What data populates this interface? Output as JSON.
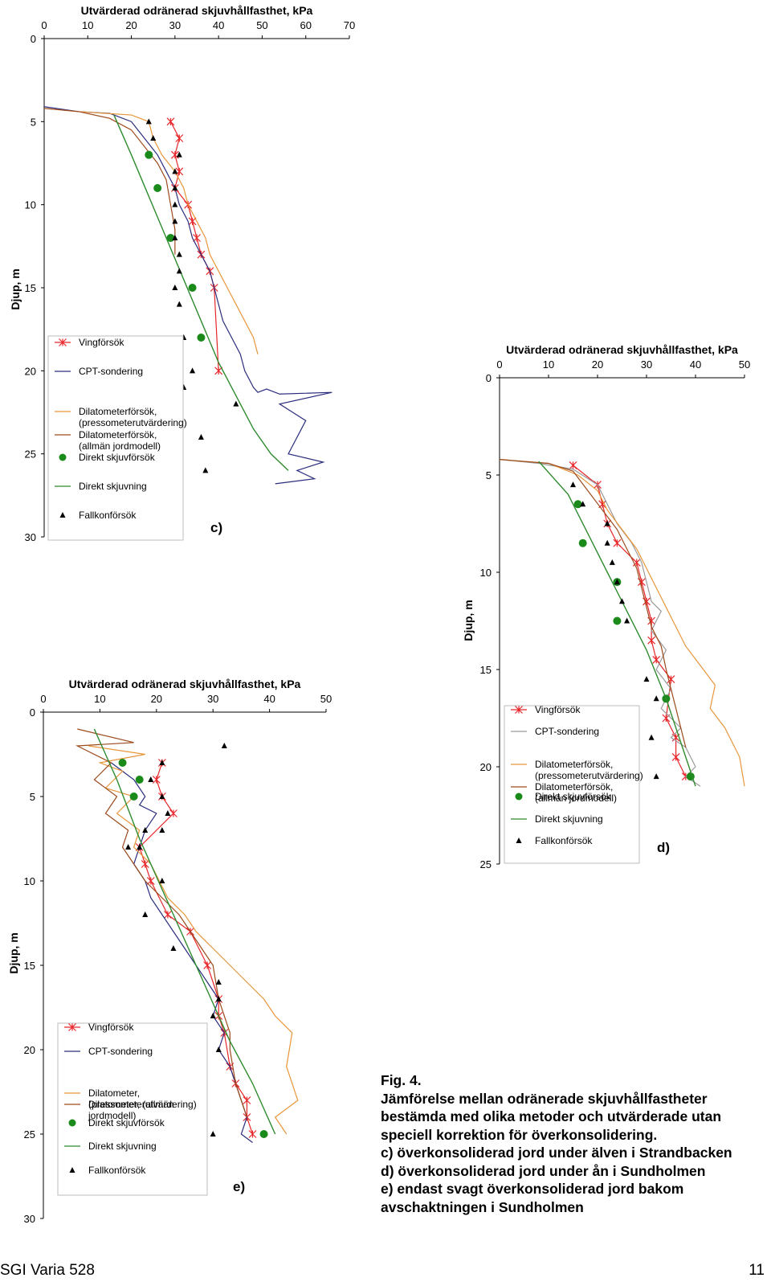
{
  "caption": {
    "lines": [
      "Fig. 4.",
      "Jämförelse mellan odränerade skjuvhållfastheter",
      "bestämda med olika metoder och utvärderade utan",
      "speciell korrektion för överkonsolidering.",
      "c) överkonsoliderad jord under älven i Strandbacken",
      "d) överkonsoliderad jord under ån i Sundholmen",
      "e) endast svagt överkonsoliderad jord bakom",
      "avschaktningen i Sundholmen"
    ]
  },
  "footer": {
    "left": "SGI Varia 528",
    "right": "11"
  },
  "colors": {
    "vingforsok": "#e8262a",
    "cpt_c": "#2b2d7e",
    "cpt_d": "#9a9a9a",
    "cpt_e": "#2b2d7e",
    "dil_press": "#e8963a",
    "dil_allman": "#9c4a1c",
    "direkt": "#1a8a1a",
    "direkt_line": "#2e8b2e",
    "fallkon": "#000000"
  },
  "chart_data": [
    {
      "id": "c",
      "type": "line",
      "panel_label": "c)",
      "title": "Utvärderad odränerad skjuvhållfasthet, kPa",
      "xlabel": "Utvärderad odränerad skjuvhållfasthet, kPa",
      "ylabel": "Djup, m",
      "xlim": [
        0,
        70
      ],
      "ylim": [
        0,
        30
      ],
      "xticks": [
        0,
        10,
        20,
        30,
        40,
        50,
        60,
        70
      ],
      "yticks": [
        0,
        5,
        10,
        15,
        20,
        25,
        30
      ],
      "legend": [
        "Vingförsök",
        "CPT-sondering",
        "Dilatometerförsök, (pressometerutvärdering)",
        "Dilatometerförsök, (allmän jordmodell)",
        "Direkt skjuvförsök",
        "Direkt skjuvning",
        "Fallkonförsök"
      ],
      "series": [
        {
          "name": "Vingförsök",
          "kind": "xline",
          "x": [
            29,
            31,
            30,
            31,
            30,
            33,
            34,
            35,
            36,
            38,
            39,
            40
          ],
          "y": [
            5,
            6,
            7,
            8,
            9,
            10,
            11,
            12,
            13,
            14,
            15,
            20
          ]
        },
        {
          "name": "CPT-sondering",
          "kind": "line",
          "x": [
            0,
            8,
            15,
            20,
            23,
            26,
            28,
            30,
            31,
            33,
            34,
            36,
            38,
            39,
            40,
            41,
            43,
            45,
            46,
            48,
            49,
            51,
            54,
            66,
            54,
            60,
            56,
            64,
            58,
            62,
            53
          ],
          "y": [
            4.1,
            4.4,
            4.5,
            5,
            6,
            7,
            8,
            9,
            10,
            11,
            12,
            13,
            14,
            15,
            16,
            17,
            18,
            19,
            20,
            21,
            21.3,
            21.1,
            21.4,
            21.3,
            22,
            23,
            25,
            25.5,
            26,
            26.5,
            26.8
          ]
        },
        {
          "name": "Dilatometerförsök, (pressometerutvärdering)",
          "kind": "line",
          "x": [
            0,
            8,
            20,
            24,
            25,
            27,
            30,
            32,
            33,
            35,
            37,
            38,
            40,
            42,
            44,
            46,
            48,
            49
          ],
          "y": [
            4.2,
            4.4,
            4.6,
            5,
            6,
            7,
            8,
            9,
            10,
            11,
            12,
            13,
            14,
            15,
            16,
            17,
            18,
            19
          ]
        },
        {
          "name": "Dilatometerförsök, (allmän jordmodell)",
          "kind": "line",
          "x": [
            0,
            8,
            15,
            20,
            23,
            26,
            28,
            29,
            30,
            30
          ],
          "y": [
            4.2,
            4.4,
            4.8,
            5.5,
            6.5,
            7.5,
            8.5,
            10,
            11.5,
            13
          ]
        },
        {
          "name": "Direkt skjuvförsök",
          "kind": "point",
          "x": [
            24,
            26,
            29,
            34,
            36
          ],
          "y": [
            7,
            9,
            12,
            15,
            18
          ]
        },
        {
          "name": "Direkt skjuvning",
          "kind": "line",
          "x": [
            16,
            20,
            24,
            28,
            32,
            36,
            40,
            44,
            48,
            52,
            56
          ],
          "y": [
            4.6,
            7,
            9.5,
            12,
            14.5,
            17,
            19.5,
            21.5,
            23.5,
            25,
            26
          ]
        },
        {
          "name": "Fallkonförsök",
          "kind": "triangle",
          "x": [
            24,
            25,
            31,
            30,
            30,
            30,
            30,
            30,
            31,
            31,
            30,
            31,
            32,
            34,
            32,
            44,
            36,
            37
          ],
          "y": [
            5,
            6,
            7,
            8,
            9,
            10,
            11,
            12,
            13,
            14,
            15,
            16,
            18,
            20,
            21,
            22,
            24,
            26
          ]
        }
      ]
    },
    {
      "id": "d",
      "type": "line",
      "panel_label": "d)",
      "title": "Utvärderad odränerad skjuvhållfasthet, kPa",
      "xlabel": "Utvärderad odränerad skjuvhållfasthet, kPa",
      "ylabel": "Djup, m",
      "xlim": [
        0,
        50
      ],
      "ylim": [
        0,
        25
      ],
      "xticks": [
        0,
        10,
        20,
        30,
        40,
        50
      ],
      "yticks": [
        0,
        5,
        10,
        15,
        20,
        25
      ],
      "legend": [
        "Vingförsök",
        "CPT-sondering",
        "Dilatometerförsök, (pressometerutvärdering)",
        "Dilatometerförsök, (allmän jordmodell)",
        "Direkt skjuvförsök",
        "Direkt skjuvning",
        "Fallkonförsök"
      ],
      "series": [
        {
          "name": "Vingförsök",
          "kind": "xline",
          "x": [
            15,
            20,
            21,
            22,
            24,
            28,
            29,
            30,
            31,
            31,
            32,
            35,
            34,
            36,
            36,
            38
          ],
          "y": [
            4.5,
            5.5,
            6.5,
            7.5,
            8.5,
            9.5,
            10.5,
            11.5,
            12.5,
            13.5,
            14.5,
            15.5,
            17.5,
            18.5,
            19.5,
            20.5
          ]
        },
        {
          "name": "CPT-sondering",
          "kind": "line",
          "x": [
            0,
            8,
            15,
            20,
            22,
            24,
            27,
            29,
            30,
            31,
            33,
            31,
            34,
            32,
            35,
            33,
            37,
            35,
            38,
            40,
            38,
            41
          ],
          "y": [
            4.2,
            4.4,
            4.7,
            5.5,
            6.5,
            7.5,
            8.5,
            9.5,
            10.5,
            11.5,
            12,
            13,
            14,
            15,
            16,
            17,
            18,
            18.5,
            19,
            20,
            20.5,
            21
          ]
        },
        {
          "name": "Dilatometerförsök, (pressometerutvärdering)",
          "kind": "line",
          "x": [
            0,
            10,
            16,
            20,
            22,
            25,
            28,
            30,
            32,
            34,
            36,
            38,
            41,
            44,
            43,
            46,
            49,
            50
          ],
          "y": [
            4.2,
            4.4,
            5,
            5.8,
            6.8,
            7.8,
            8.8,
            9.8,
            10.8,
            11.8,
            12.8,
            13.8,
            14.8,
            15.8,
            17,
            18,
            19.5,
            21
          ]
        },
        {
          "name": "Dilatometerförsök, (allmän jordmodell)",
          "kind": "line",
          "x": [
            0,
            10,
            15,
            18,
            21,
            24,
            26,
            28,
            29,
            30,
            31,
            33,
            34,
            35,
            36,
            37,
            38
          ],
          "y": [
            4.2,
            4.4,
            4.8,
            5.8,
            6.8,
            7.8,
            8.8,
            9.8,
            10.8,
            11.8,
            12.8,
            13.8,
            15,
            16,
            17,
            18,
            19
          ]
        },
        {
          "name": "Direkt skjuvförsök",
          "kind": "point",
          "x": [
            16,
            17,
            24,
            24,
            34,
            39
          ],
          "y": [
            6.5,
            8.5,
            10.5,
            12.5,
            16.5,
            20.5
          ]
        },
        {
          "name": "Direkt skjuvning",
          "kind": "line",
          "x": [
            8,
            14,
            18,
            22,
            26,
            30,
            34,
            38,
            40
          ],
          "y": [
            4.3,
            6,
            8,
            10,
            12,
            14,
            16.5,
            19.5,
            21
          ]
        },
        {
          "name": "Fallkonförsök",
          "kind": "triangle",
          "x": [
            15,
            17,
            22,
            22,
            23,
            24,
            25,
            26,
            30,
            32,
            31,
            32
          ],
          "y": [
            5.5,
            6.5,
            7.5,
            8.5,
            9.5,
            10.5,
            11.5,
            12.5,
            15.5,
            16.5,
            18.5,
            20.5
          ]
        }
      ]
    },
    {
      "id": "e",
      "type": "line",
      "panel_label": "e)",
      "title": "Utvärderad odränerad skjuvhållfasthet, kPa",
      "xlabel": "Utvärderad odränerad skjuvhållfasthet, kPa",
      "ylabel": "Djup, m",
      "xlim": [
        0,
        50
      ],
      "ylim": [
        0,
        30
      ],
      "xticks": [
        0,
        10,
        20,
        30,
        40,
        50
      ],
      "yticks": [
        0,
        5,
        10,
        15,
        20,
        25,
        30
      ],
      "legend": [
        "Vingförsök",
        "CPT-sondering",
        "Dilatometer, (pressometerutvärdering)",
        "Dilatometer, (allmän jordmodell)",
        "Direkt skjuvförsök",
        "Direkt skjuvning",
        "Fallkonförsök"
      ],
      "series": [
        {
          "name": "Vingförsök",
          "kind": "xline",
          "x": [
            21,
            20,
            21,
            23,
            17,
            18,
            19,
            22,
            26,
            29,
            31,
            31,
            32,
            33,
            34,
            36,
            36,
            37
          ],
          "y": [
            3,
            4,
            5,
            6,
            8,
            9,
            10,
            12,
            13,
            15,
            17,
            18,
            19,
            21,
            22,
            23,
            24,
            25
          ]
        },
        {
          "name": "CPT-sondering",
          "kind": "line",
          "x": [
            12,
            14,
            16,
            18,
            17,
            20,
            18,
            17,
            16,
            18,
            19,
            21,
            23,
            25,
            27,
            29,
            31,
            30,
            32,
            31,
            33,
            34,
            35,
            36,
            35,
            37
          ],
          "y": [
            3,
            3.5,
            4,
            5,
            5.5,
            6,
            7,
            8,
            9,
            10,
            11,
            12,
            13,
            14,
            15,
            16,
            17,
            18,
            19,
            20,
            21,
            22,
            23,
            24,
            25,
            25.5
          ]
        },
        {
          "name": "Dilatometer, (pressometerutvärdering)",
          "kind": "line",
          "x": [
            8,
            18,
            10,
            14,
            11,
            16,
            13,
            17,
            16,
            19,
            22,
            25,
            27,
            30,
            33,
            36,
            39,
            41,
            44,
            43,
            45,
            41,
            42,
            43
          ],
          "y": [
            2,
            2.5,
            3,
            3.5,
            4.5,
            5,
            6,
            7,
            8,
            9,
            11,
            12,
            13,
            14,
            15,
            16,
            17,
            18,
            19,
            21,
            23,
            24,
            24.5,
            25
          ]
        },
        {
          "name": "Dilatometer, (allmän jordmodell)",
          "kind": "line",
          "x": [
            6,
            16,
            6,
            12,
            9,
            13,
            11,
            15,
            14,
            16,
            18,
            21,
            24,
            26,
            28,
            30,
            31,
            32,
            33,
            33,
            34,
            35,
            36
          ],
          "y": [
            1,
            1.8,
            2,
            3,
            4,
            5,
            6,
            7,
            8,
            9,
            10,
            11,
            12,
            13,
            14,
            15,
            17,
            18,
            19,
            20,
            22,
            23,
            24
          ]
        },
        {
          "name": "Direkt skjuvförsök",
          "kind": "point",
          "x": [
            14,
            17,
            16,
            39
          ],
          "y": [
            3,
            4,
            5,
            25
          ]
        },
        {
          "name": "Direkt skjuvning",
          "kind": "line",
          "x": [
            9,
            13,
            17,
            21,
            25,
            29,
            33,
            37,
            41
          ],
          "y": [
            1,
            4,
            7.5,
            10.5,
            13.5,
            16.5,
            19.5,
            22,
            25
          ]
        },
        {
          "name": "Fallkonförsök",
          "kind": "triangle",
          "x": [
            32,
            21,
            19,
            21,
            22,
            21,
            18,
            17,
            15,
            21,
            18,
            23,
            31,
            31,
            30,
            31,
            30
          ],
          "y": [
            2,
            3,
            4,
            5,
            6,
            7,
            7,
            8,
            8,
            10,
            12,
            14,
            16,
            17,
            18,
            20,
            25
          ]
        }
      ]
    }
  ]
}
